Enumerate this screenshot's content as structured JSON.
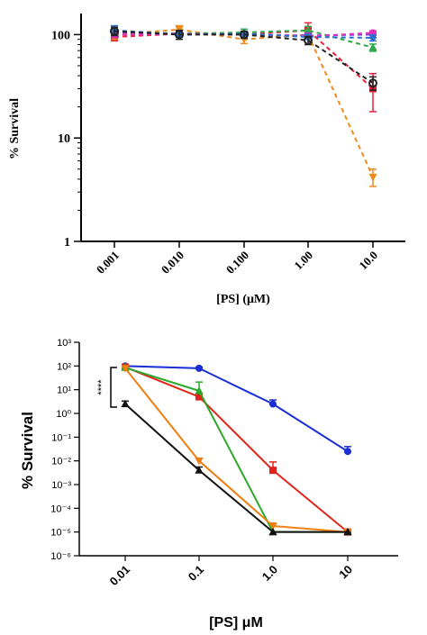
{
  "chart_data": [
    {
      "type": "line",
      "yscale": "log",
      "title": "",
      "xlabel": "[PS] (μM)",
      "ylabel": "% Survival",
      "categories": [
        "0.001",
        "0.010",
        "0.100",
        "1.00",
        "10.0"
      ],
      "ylim": [
        1,
        160
      ],
      "yticks": [
        1,
        10,
        100
      ],
      "ytick_labels": [
        "1",
        "10",
        "100"
      ],
      "grid": false,
      "legend": "none",
      "series": [
        {
          "color": "#e8203a",
          "marker": "square",
          "values": [
            95,
            102,
            100,
            110,
            30
          ],
          "errors": [
            8,
            5,
            6,
            20,
            12
          ]
        },
        {
          "color": "#f08a1c",
          "marker": "triangle-down",
          "values": [
            100,
            112,
            90,
            100,
            4.2
          ],
          "errors": [
            10,
            10,
            8,
            10,
            0.8
          ]
        },
        {
          "color": "#2ea84a",
          "marker": "triangle",
          "values": [
            108,
            102,
            105,
            110,
            75
          ],
          "errors": [
            10,
            6,
            8,
            10,
            6
          ]
        },
        {
          "color": "#8a3fd8",
          "marker": "circle",
          "values": [
            105,
            102,
            100,
            98,
            100
          ],
          "errors": [
            8,
            5,
            5,
            5,
            6
          ]
        },
        {
          "color": "#e030b8",
          "marker": "circle",
          "values": [
            100,
            101,
            101,
            96,
            104
          ],
          "errors": [
            6,
            5,
            5,
            5,
            5
          ]
        },
        {
          "color": "#2870d0",
          "marker": "diamond",
          "values": [
            110,
            100,
            102,
            95,
            93
          ],
          "errors": [
            12,
            6,
            5,
            5,
            6
          ]
        },
        {
          "color": "#222222",
          "marker": "circle-open",
          "values": [
            108,
            100,
            100,
            88,
            34
          ],
          "errors": [
            10,
            10,
            8,
            8,
            5
          ]
        }
      ]
    },
    {
      "type": "line",
      "yscale": "log",
      "title": "",
      "xlabel": "[PS] μM",
      "ylabel": "% Survival",
      "categories": [
        "0.01",
        "0.1",
        "1.0",
        "10"
      ],
      "ylim": [
        1e-06,
        1000
      ],
      "ytick_labels": [
        "10³",
        "10²",
        "10¹",
        "10⁰",
        "10⁻¹",
        "10⁻²",
        "10⁻³",
        "10⁻⁴",
        "10⁻⁵",
        "10⁻⁶"
      ],
      "grid": false,
      "legend": "none",
      "annotation": "****",
      "series": [
        {
          "color": "#1a2ed6",
          "marker": "circle",
          "values": [
            100,
            80,
            2.5,
            0.025
          ],
          "errors": [
            10,
            10,
            1.2,
            0.015
          ]
        },
        {
          "color": "#e2231a",
          "marker": "square",
          "values": [
            90,
            5,
            0.004,
            1e-05
          ],
          "errors": [
            10,
            2,
            0.005,
            0
          ]
        },
        {
          "color": "#2aa82a",
          "marker": "triangle",
          "values": [
            85,
            9,
            1e-05,
            1e-05
          ],
          "errors": [
            10,
            12,
            0,
            0
          ]
        },
        {
          "color": "#f07d10",
          "marker": "triangle-down",
          "values": [
            80,
            0.01,
            1.8e-05,
            1e-05
          ],
          "errors": [
            10,
            0.003,
            6e-06,
            0
          ]
        },
        {
          "color": "#111111",
          "marker": "triangle",
          "values": [
            2.5,
            0.004,
            1e-05,
            1e-05
          ],
          "errors": [
            0.8,
            0.0015,
            0,
            0
          ]
        }
      ]
    }
  ]
}
